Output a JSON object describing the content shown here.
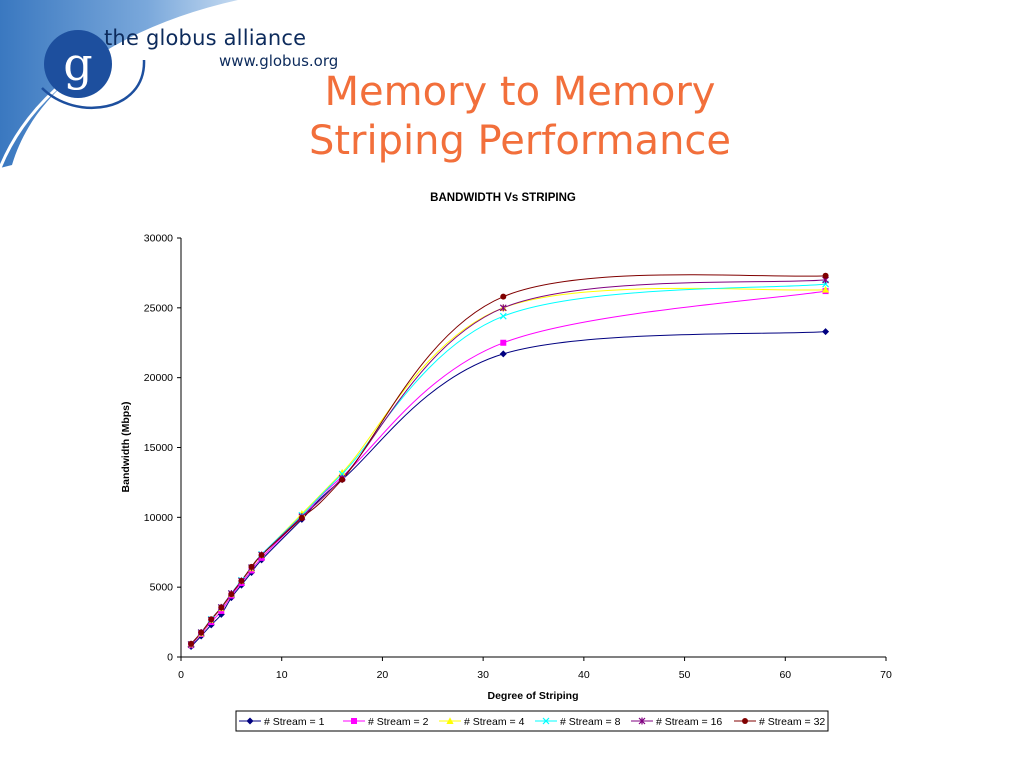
{
  "header": {
    "brand_name": "the globus alliance",
    "brand_url": "www.globus.org",
    "logo_letter": "g"
  },
  "slide": {
    "title_line1": "Memory to Memory",
    "title_line2": "Striping Performance"
  },
  "chart_data": {
    "type": "line",
    "title": "BANDWIDTH Vs STRIPING",
    "xlabel": "Degree of Striping",
    "ylabel": "Bandwidth (Mbps)",
    "xlim": [
      0,
      70
    ],
    "ylim": [
      0,
      30000
    ],
    "x_ticks": [
      "0",
      "10",
      "20",
      "30",
      "40",
      "50",
      "60",
      "70"
    ],
    "y_ticks": [
      "0",
      "5000",
      "10000",
      "15000",
      "20000",
      "25000",
      "30000"
    ],
    "grid": false,
    "legend_position": "bottom",
    "x": [
      1,
      2,
      3,
      4,
      5,
      6,
      7,
      8,
      12,
      16,
      32,
      64
    ],
    "series": [
      {
        "name": "# Stream = 1",
        "color": "#000080",
        "marker": "diamond",
        "values": [
          750,
          1500,
          2300,
          3050,
          4250,
          5150,
          6050,
          6950,
          9850,
          12700,
          21700,
          23300
        ]
      },
      {
        "name": "# Stream = 2",
        "color": "#ff00ff",
        "marker": "square",
        "values": [
          850,
          1650,
          2500,
          3300,
          4400,
          5300,
          6200,
          7100,
          10000,
          12900,
          22500,
          26200
        ]
      },
      {
        "name": "# Stream = 4",
        "color": "#ffff00",
        "marker": "triangle",
        "values": [
          900,
          1700,
          2650,
          3500,
          4500,
          5450,
          6350,
          7300,
          10250,
          13200,
          25000,
          26300
        ]
      },
      {
        "name": "# Stream = 8",
        "color": "#00ffff",
        "marker": "x",
        "values": [
          900,
          1750,
          2700,
          3550,
          4550,
          5500,
          6400,
          7350,
          10150,
          13100,
          24400,
          26700
        ]
      },
      {
        "name": "# Stream = 16",
        "color": "#800080",
        "marker": "star",
        "values": [
          900,
          1750,
          2650,
          3550,
          4550,
          5450,
          6400,
          7300,
          10050,
          12800,
          25000,
          27000
        ]
      },
      {
        "name": "# Stream = 32",
        "color": "#800000",
        "marker": "circle",
        "values": [
          950,
          1750,
          2700,
          3550,
          4500,
          5450,
          6450,
          7300,
          9950,
          12700,
          25800,
          27300
        ]
      }
    ]
  }
}
